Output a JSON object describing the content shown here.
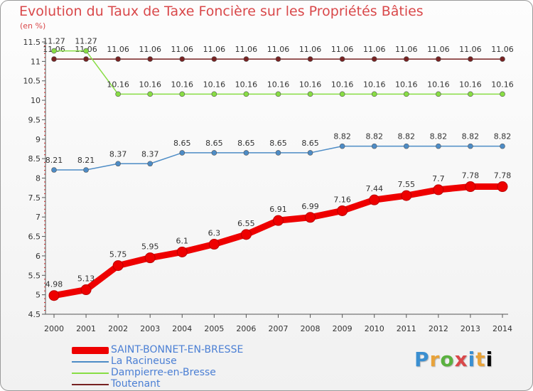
{
  "header": {
    "title": "Evolution du Taux de Taxe Foncière sur les Propriétés Bâties",
    "unit": "(en %)"
  },
  "logo_text": "Proxiti",
  "colors": {
    "accent": "#d9484a",
    "axis": "#555555",
    "grid_tick": "#cc2222"
  },
  "chart_data": {
    "type": "line",
    "x": [
      "2000",
      "2001",
      "2002",
      "2003",
      "2004",
      "2005",
      "2006",
      "2007",
      "2008",
      "2009",
      "2010",
      "2011",
      "2012",
      "2013",
      "2014"
    ],
    "ylim": [
      4.5,
      11.5
    ],
    "yticks": [
      "4.5",
      "5",
      "5.5",
      "6",
      "6.5",
      "7",
      "7.5",
      "8",
      "8.5",
      "9",
      "9.5",
      "10",
      "10.5",
      "11",
      "11.5"
    ],
    "grid": false,
    "legend_position": "bottom-left",
    "series": [
      {
        "name": "SAINT-BONNET-EN-BRESSE",
        "color": "#ee0000",
        "values": [
          4.98,
          5.13,
          5.75,
          5.95,
          6.1,
          6.3,
          6.55,
          6.91,
          6.99,
          7.16,
          7.44,
          7.55,
          7.7,
          7.78,
          7.78
        ],
        "labels": [
          "4.98",
          "5.13",
          "5.75",
          "5.95",
          "6.1",
          "6.3",
          "6.55",
          "6.91",
          "6.99",
          "7.16",
          "7.44",
          "7.55",
          "7.7",
          "7.78",
          "7.78"
        ]
      },
      {
        "name": "La Racineuse",
        "color": "#4d8cc6",
        "values": [
          8.21,
          8.21,
          8.37,
          8.37,
          8.65,
          8.65,
          8.65,
          8.65,
          8.65,
          8.82,
          8.82,
          8.82,
          8.82,
          8.82,
          8.82
        ],
        "labels": [
          "8.21",
          "8.21",
          "8.37",
          "8.37",
          "8.65",
          "8.65",
          "8.65",
          "8.65",
          "8.65",
          "8.82",
          "8.82",
          "8.82",
          "8.82",
          "8.82",
          "8.82"
        ]
      },
      {
        "name": "Dampierre-en-Bresse",
        "color": "#88dd44",
        "values": [
          11.27,
          11.27,
          10.16,
          10.16,
          10.16,
          10.16,
          10.16,
          10.16,
          10.16,
          10.16,
          10.16,
          10.16,
          10.16,
          10.16,
          10.16
        ],
        "labels": [
          "11.27",
          "11.27",
          "10.16",
          "10.16",
          "10.16",
          "10.16",
          "10.16",
          "10.16",
          "10.16",
          "10.16",
          "10.16",
          "10.16",
          "10.16",
          "10.16",
          "10.16"
        ]
      },
      {
        "name": "Toutenant",
        "color": "#772222",
        "values": [
          11.06,
          11.06,
          11.06,
          11.06,
          11.06,
          11.06,
          11.06,
          11.06,
          11.06,
          11.06,
          11.06,
          11.06,
          11.06,
          11.06,
          11.06
        ],
        "labels": [
          "11.06",
          "11.06",
          "11.06",
          "11.06",
          "11.06",
          "11.06",
          "11.06",
          "11.06",
          "11.06",
          "11.06",
          "11.06",
          "11.06",
          "11.06",
          "11.06",
          "11.06"
        ]
      }
    ]
  }
}
